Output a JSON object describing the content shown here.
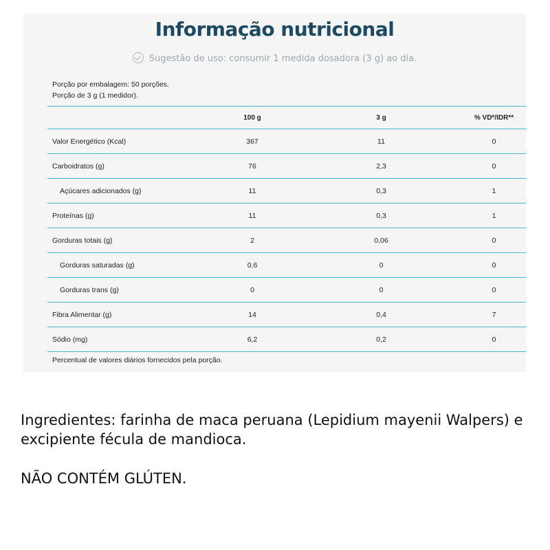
{
  "panel": {
    "title": "Informação nutricional",
    "usage_text": "Sugestão de uso: consumir 1 medida dosadora (3 g) ao dia.",
    "portion_line1": "Porção por embalagem: 50 porções.",
    "portion_line2": "Porção de 3 g (1 medidor).",
    "table": {
      "headers": [
        "",
        "100 g",
        "3 g",
        "% VD*/IDR**"
      ],
      "rows": [
        {
          "label": "Valor Energético (Kcal)",
          "v100": "367",
          "v3": "11",
          "vd": "0"
        },
        {
          "label": "Carboidratos (g)",
          "v100": "76",
          "v3": "2,3",
          "vd": "0"
        },
        {
          "label": "Açúcares adicionados (g)",
          "v100": "11",
          "v3": "0,3",
          "vd": "1"
        },
        {
          "label": "Proteínas (g)",
          "v100": "11",
          "v3": "0,3",
          "vd": "1"
        },
        {
          "label": "Gorduras totais (g)",
          "v100": "2",
          "v3": "0,06",
          "vd": "0"
        },
        {
          "label": "Gorduras saturadas (g)",
          "v100": "0,6",
          "v3": "0",
          "vd": "0"
        },
        {
          "label": "Gorduras trans (g)",
          "v100": "0",
          "v3": "0",
          "vd": "0"
        },
        {
          "label": "Fibra Alimentar (g)",
          "v100": "14",
          "v3": "0,4",
          "vd": "7"
        },
        {
          "label": "Sódio (mg)",
          "v100": "6,2",
          "v3": "0,2",
          "vd": "0"
        }
      ]
    },
    "footnote": "Percentual de valores diários fornecidos pela porção."
  },
  "ingredients": "Ingredientes: farinha de maca peruana (Lepidium mayenii Walpers) e excipiente fécula de mandioca.",
  "gluten_notice": "NÃO CONTÉM GLÚTEN.",
  "icons": {
    "usage": "check-circle-icon"
  },
  "colors": {
    "title": "#1d4a62",
    "table_rule": "#3fb9c9",
    "panel_bg": "#f5f5f5",
    "usage_text": "#9aa8b1"
  }
}
